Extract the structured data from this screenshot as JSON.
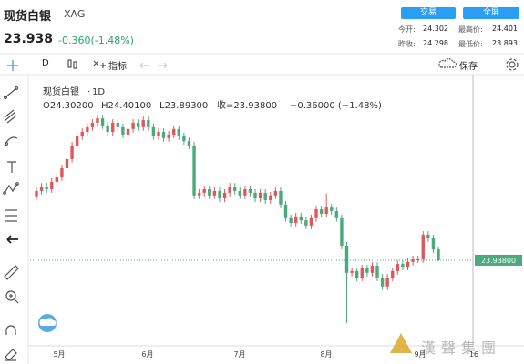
{
  "header": {
    "name": "现货白银",
    "symbol": "XAG",
    "price": "23.938",
    "change": "-0.360(-1.48%)",
    "buttons": [
      "交易",
      "全屏"
    ],
    "stats": [
      {
        "label": "今开:",
        "value": "24.302"
      },
      {
        "label": "最高价:",
        "value": "24.401"
      },
      {
        "label": "昨收:",
        "value": "24.298"
      },
      {
        "label": "最低价:",
        "value": "23.893"
      }
    ]
  },
  "toolbar": {
    "interval": "D",
    "indicators": "指标",
    "save": "保存"
  },
  "watermark": "漢聲集團",
  "chart_data": {
    "type": "candlestick",
    "symbol_name": "现货白银",
    "interval": "1D",
    "legend": [
      "O24.30200",
      "H24.40100",
      "L23.89300",
      "收=23.93800",
      "−0.36000 (−1.48%)"
    ],
    "x_labels": [
      "5月",
      "6月",
      "7月",
      "8月",
      "9月",
      "16"
    ],
    "ylim": [
      21.04,
      30.13
    ],
    "last_price": {
      "value": 23.938,
      "label": "23.93800"
    },
    "up_color": "#e0575b",
    "down_color": "#4ca97c",
    "open": [
      26.1,
      26.28,
      26.43,
      26.34,
      26.59,
      26.74,
      27.05,
      27.36,
      27.82,
      28.13,
      28.28,
      28.44,
      28.59,
      28.74,
      28.5,
      28.28,
      28.59,
      28.44,
      28.19,
      28.38,
      28.59,
      28.44,
      28.68,
      28.44,
      28.13,
      28.28,
      28.07,
      28.19,
      28.38,
      28.13,
      27.97,
      27.82,
      26.13,
      26.22,
      26.34,
      26.13,
      26.28,
      26.03,
      26.22,
      26.43,
      26.28,
      26.13,
      26.34,
      26.22,
      26.03,
      26.22,
      25.97,
      26.13,
      26.28,
      25.82,
      25.36,
      25.2,
      25.42,
      25.29,
      25.11,
      25.36,
      25.66,
      25.51,
      25.72,
      25.6,
      25.36,
      24.43,
      23.51,
      23.57,
      23.35,
      23.66,
      23.51,
      23.75,
      23.35,
      23.05,
      23.35,
      23.57,
      23.81,
      23.72,
      23.88,
      23.97,
      23.97,
      24.8,
      24.68,
      24.302
    ],
    "high": [
      26.4,
      26.55,
      26.55,
      26.71,
      26.86,
      27.17,
      27.48,
      27.94,
      28.25,
      28.4,
      28.56,
      28.71,
      28.86,
      28.86,
      28.62,
      28.71,
      28.71,
      28.56,
      28.5,
      28.71,
      28.71,
      28.8,
      28.8,
      28.56,
      28.4,
      28.4,
      28.31,
      28.5,
      28.5,
      28.25,
      28.09,
      27.94,
      26.34,
      26.46,
      26.46,
      26.4,
      26.4,
      26.34,
      26.55,
      26.55,
      26.4,
      26.46,
      26.46,
      26.34,
      26.34,
      26.34,
      26.25,
      26.4,
      26.4,
      25.94,
      25.48,
      25.54,
      25.54,
      25.41,
      25.48,
      25.78,
      25.78,
      26.2,
      25.84,
      25.72,
      25.48,
      24.55,
      23.69,
      23.69,
      23.78,
      23.78,
      23.87,
      23.87,
      23.47,
      23.47,
      23.69,
      23.93,
      23.93,
      24.0,
      24.09,
      24.09,
      24.92,
      24.92,
      24.8,
      24.401
    ],
    "low": [
      25.98,
      26.16,
      26.22,
      26.22,
      26.47,
      26.62,
      26.93,
      27.24,
      27.7,
      28.01,
      28.16,
      28.32,
      28.47,
      28.38,
      28.16,
      28.16,
      28.32,
      28.07,
      28.07,
      28.26,
      28.32,
      28.32,
      28.32,
      28.01,
      28.01,
      27.95,
      27.95,
      28.07,
      28.01,
      27.85,
      27.7,
      26.01,
      26.01,
      26.1,
      26.01,
      26.01,
      25.91,
      25.91,
      26.1,
      26.16,
      26.01,
      26.01,
      26.1,
      25.91,
      25.91,
      25.85,
      25.85,
      26.01,
      25.7,
      25.24,
      25.08,
      25.08,
      25.17,
      24.99,
      24.99,
      25.24,
      25.39,
      25.39,
      25.48,
      25.24,
      24.31,
      21.8,
      23.39,
      23.23,
      23.23,
      23.39,
      23.39,
      23.23,
      22.93,
      22.93,
      23.23,
      23.45,
      23.6,
      23.6,
      23.76,
      23.85,
      23.85,
      24.56,
      24.18,
      23.893
    ],
    "close": [
      26.28,
      26.43,
      26.34,
      26.59,
      26.74,
      27.05,
      27.36,
      27.82,
      28.13,
      28.28,
      28.44,
      28.59,
      28.74,
      28.5,
      28.28,
      28.59,
      28.44,
      28.19,
      28.38,
      28.59,
      28.44,
      28.68,
      28.44,
      28.13,
      28.28,
      28.07,
      28.19,
      28.38,
      28.13,
      27.97,
      27.82,
      26.13,
      26.22,
      26.34,
      26.13,
      26.28,
      26.03,
      26.22,
      26.43,
      26.28,
      26.13,
      26.34,
      26.22,
      26.03,
      26.22,
      25.97,
      26.13,
      26.28,
      25.82,
      25.36,
      25.2,
      25.42,
      25.29,
      25.11,
      25.36,
      25.66,
      25.51,
      25.72,
      25.6,
      25.36,
      24.43,
      23.51,
      23.57,
      23.35,
      23.66,
      23.51,
      23.75,
      23.35,
      23.05,
      23.35,
      23.57,
      23.81,
      23.72,
      23.88,
      23.97,
      23.97,
      24.8,
      24.68,
      24.302,
      23.938
    ]
  }
}
